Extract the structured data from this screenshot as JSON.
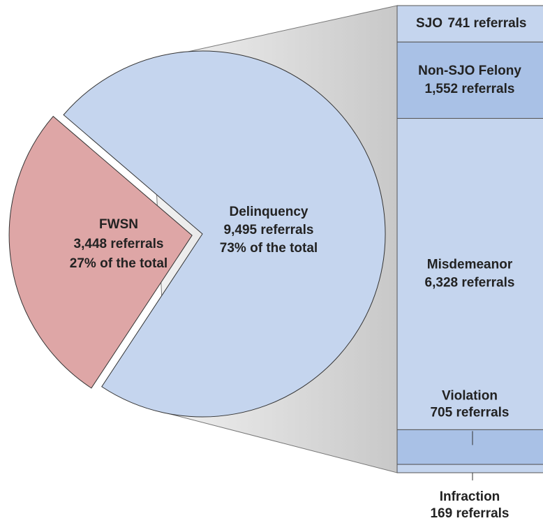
{
  "chart_data": {
    "type": "bar-of-pie",
    "slices": [
      {
        "name": "FWSN",
        "value": 3448,
        "value_label": "3,448 referrals",
        "percent": 27,
        "percent_label": "27% of the total",
        "color": "#dea6a6"
      },
      {
        "name": "Delinquency",
        "value": 9495,
        "value_label": "9,495 referrals",
        "percent": 73,
        "percent_label": "73% of the total",
        "color": "#c5d5ee"
      }
    ],
    "breakdown": [
      {
        "name": "SJO",
        "value": 741,
        "value_label": "741 referrals",
        "color": "#c5d5ee"
      },
      {
        "name": "Non-SJO Felony",
        "value": 1552,
        "value_label": "1,552 referrals",
        "color": "#a9c1e6"
      },
      {
        "name": "Misdemeanor",
        "value": 6328,
        "value_label": "6,328 referrals",
        "color": "#c5d5ee"
      },
      {
        "name": "Violation",
        "value": 705,
        "value_label": "705 referrals",
        "color": "#a9c1e6"
      },
      {
        "name": "Infraction",
        "value": 169,
        "value_label": "169 referrals",
        "color": "#c5d5ee"
      }
    ]
  }
}
